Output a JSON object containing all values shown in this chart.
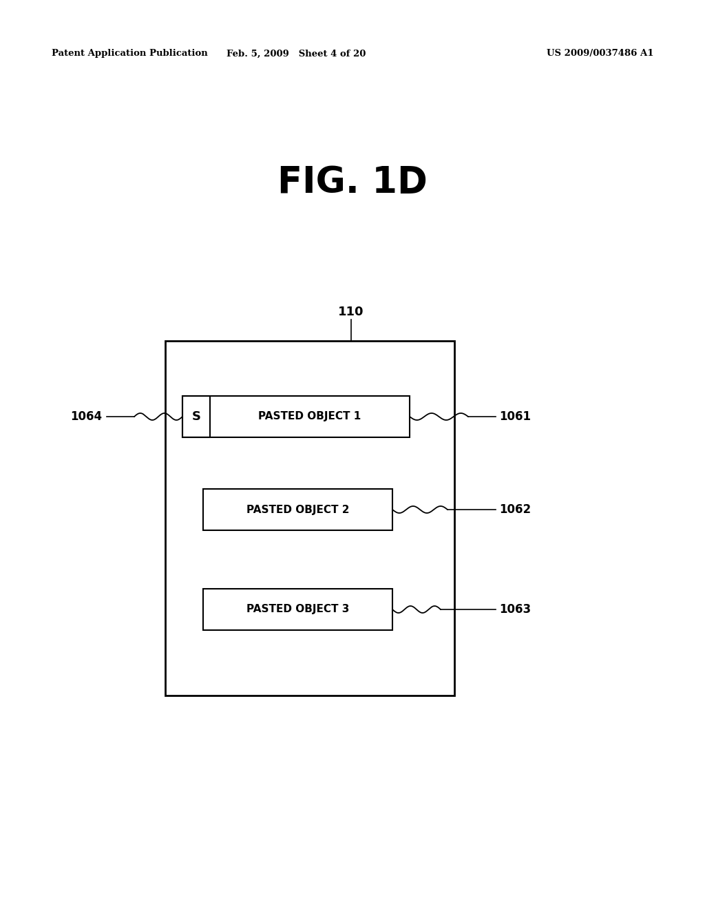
{
  "bg_color": "#ffffff",
  "header_left": "Patent Application Publication",
  "header_mid": "Feb. 5, 2009   Sheet 4 of 20",
  "header_right": "US 2009/0037486 A1",
  "fig_title": "FIG. 1D",
  "line_color": "#000000",
  "text_color": "#000000"
}
